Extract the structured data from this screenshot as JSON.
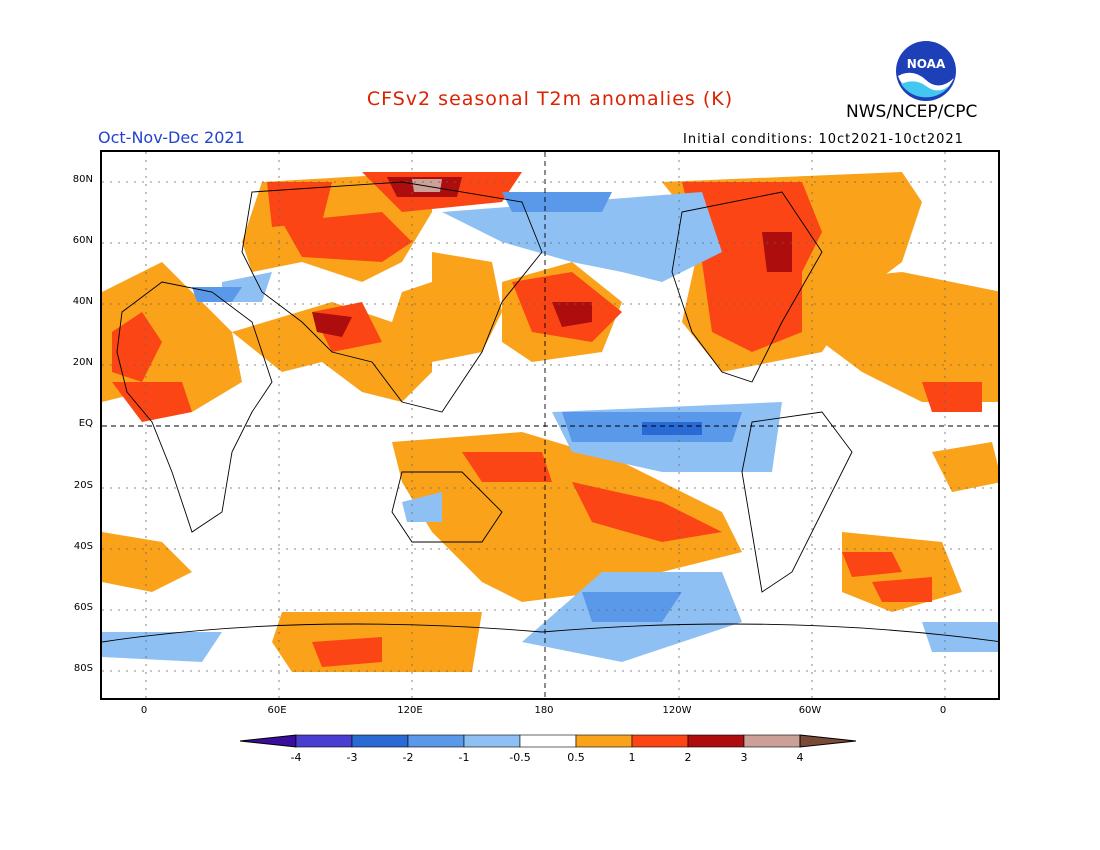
{
  "title": "CFSv2 seasonal T2m anomalies (K)",
  "period": "Oct-Nov-Dec 2021",
  "initial_conditions": "Initial conditions: 10ct2021-10ct2021",
  "agency": "NWS/NCEP/CPC",
  "logo_text": "NOAA",
  "colors": {
    "title": "#dd2200",
    "period": "#2244cc",
    "c_m4": "#3a0e9c",
    "c_m3": "#4a3ed0",
    "c_m2": "#2a6ad4",
    "c_m1": "#5a98ea",
    "c_m05": "#8ec0f4",
    "c_0": "#ffffff",
    "c_05": "#f9a21a",
    "c_1": "#fb4514",
    "c_2": "#ad0d0d",
    "c_3": "#caa097",
    "c_4": "#7a4a38"
  },
  "lat_labels": [
    "80N",
    "60N",
    "40N",
    "20N",
    "EQ",
    "20S",
    "40S",
    "60S",
    "80S"
  ],
  "lon_labels": [
    "0",
    "60E",
    "120E",
    "180",
    "120W",
    "60W",
    "0"
  ],
  "colorbar_labels": [
    "-4",
    "-3",
    "-2",
    "-1",
    "-0.5",
    "0.5",
    "1",
    "2",
    "3",
    "4"
  ]
}
